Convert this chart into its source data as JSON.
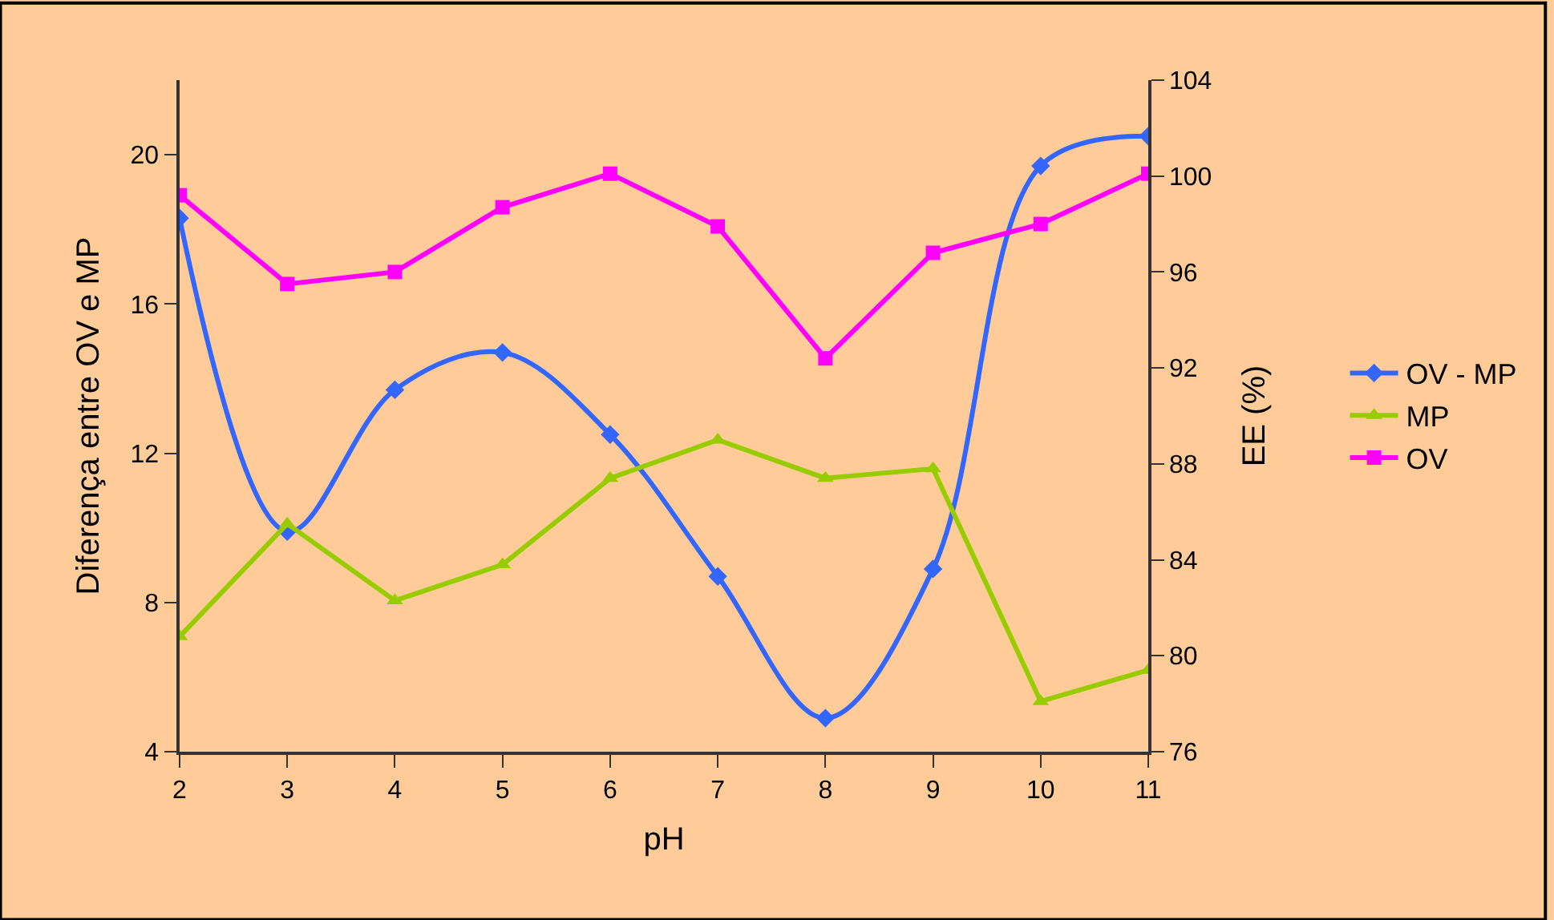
{
  "chart_data": {
    "type": "line",
    "xlabel": "pH",
    "ylabel": "Diferença entre OV e MP",
    "y2label": "EE (%)",
    "x": [
      2,
      3,
      4,
      5,
      6,
      7,
      8,
      9,
      10,
      11
    ],
    "xlim": [
      2,
      11
    ],
    "xticks": [
      2,
      3,
      4,
      5,
      6,
      7,
      8,
      9,
      10,
      11
    ],
    "ylim": [
      4,
      22
    ],
    "yticks": [
      4,
      8,
      12,
      16,
      20
    ],
    "y2lim": [
      76,
      104
    ],
    "y2ticks": [
      76,
      80,
      84,
      88,
      92,
      96,
      100,
      104
    ],
    "grid": false,
    "legend": "right",
    "line_style": "solid",
    "series": [
      {
        "name": "OV - MP",
        "color": "#3366ff",
        "marker": "diamond",
        "values": [
          18.3,
          9.9,
          13.7,
          14.7,
          12.5,
          8.7,
          4.9,
          8.9,
          19.7,
          20.5
        ]
      },
      {
        "name": "MP",
        "color": "#99cc00",
        "marker": "triangle",
        "axis": "y2",
        "values": [
          80.8,
          85.5,
          82.3,
          83.8,
          87.4,
          89.0,
          87.4,
          87.8,
          78.1,
          79.4
        ]
      },
      {
        "name": "OV",
        "color": "#ff00ff",
        "marker": "square",
        "axis": "y2",
        "values": [
          99.2,
          95.5,
          96.0,
          98.7,
          100.1,
          97.9,
          92.4,
          96.8,
          98.0,
          100.1
        ]
      }
    ]
  }
}
